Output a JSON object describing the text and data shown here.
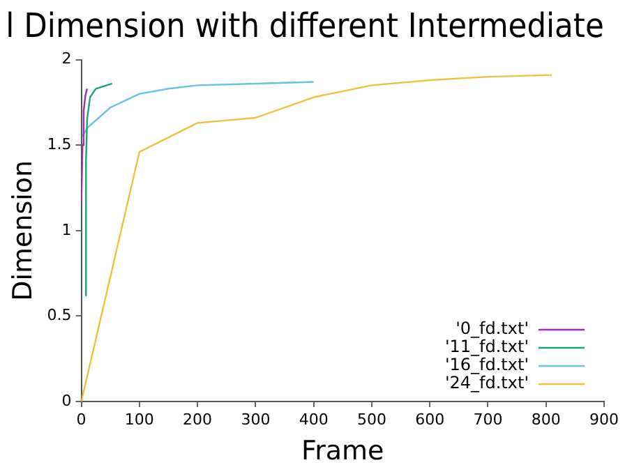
{
  "chart_data": {
    "type": "line",
    "title": "l Dimension with different Intermediate",
    "xlabel": "Frame",
    "ylabel": "Dimension",
    "xlim": [
      0,
      900
    ],
    "xticks": [
      0,
      100,
      200,
      300,
      400,
      500,
      600,
      700,
      800,
      900
    ],
    "ylim": [
      0,
      2
    ],
    "yticks": [
      0,
      0.5,
      1,
      1.5,
      2
    ],
    "grid": false,
    "legend": "bottom right",
    "series": [
      {
        "name": "'0_fd.txt'",
        "color": "#9b30b0",
        "x": [
          0,
          2,
          4,
          7,
          10
        ],
        "values": [
          1.15,
          1.5,
          1.7,
          1.79,
          1.83
        ]
      },
      {
        "name": "'11_fd.txt'",
        "color": "#20a080",
        "x": [
          7,
          8,
          10,
          15,
          25,
          53
        ],
        "values": [
          0.62,
          1.4,
          1.65,
          1.78,
          1.83,
          1.86
        ]
      },
      {
        "name": "'16_fd.txt'",
        "color": "#66c0e8",
        "x": [
          2,
          10,
          50,
          100,
          150,
          200,
          300,
          400
        ],
        "values": [
          1.55,
          1.6,
          1.72,
          1.8,
          1.83,
          1.85,
          1.86,
          1.87
        ]
      },
      {
        "name": "'24_fd.txt'",
        "color": "#f0c040",
        "x": [
          0,
          100,
          200,
          300,
          400,
          500,
          600,
          700,
          810
        ],
        "values": [
          0,
          1.46,
          1.63,
          1.66,
          1.78,
          1.85,
          1.88,
          1.9,
          1.91
        ]
      }
    ]
  }
}
